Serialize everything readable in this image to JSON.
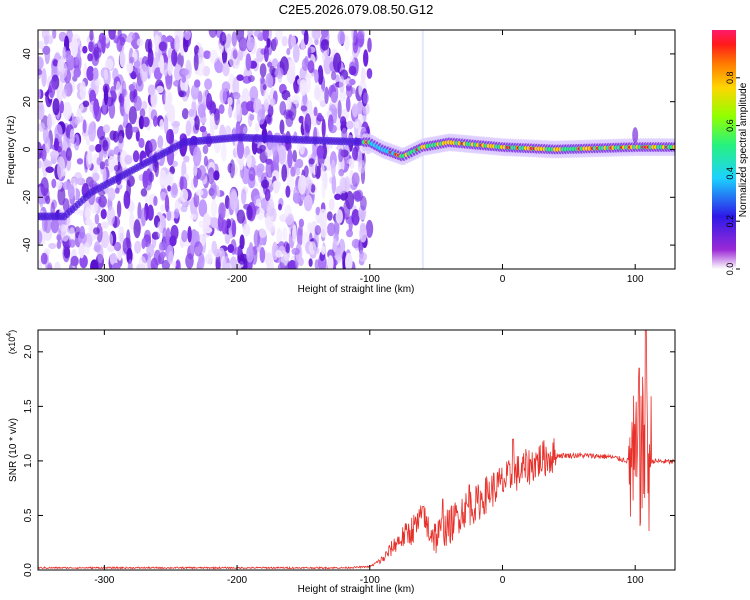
{
  "title": "C2E5.2026.079.08.50.G12",
  "colors": {
    "snr_line": "#e8302a",
    "heat_low": "#e8d8ff",
    "heat_mid": "#6a1bd8",
    "background": "#ffffff"
  },
  "chart_data": [
    {
      "type": "heatmap",
      "title": "C2E5.2026.079.08.50.G12",
      "xlabel": "Height of straight line (km)",
      "ylabel": "Frequency (Hz)",
      "xlim": [
        -350,
        130
      ],
      "ylim": [
        -50,
        50
      ],
      "xticks": [
        -300,
        -200,
        -100,
        0,
        100
      ],
      "yticks": [
        -40,
        -20,
        0,
        20,
        40
      ],
      "grid": false,
      "colorbar": {
        "label": "Normalized spectral amplitude",
        "range": [
          0.0,
          1.0
        ],
        "ticks": [
          "0.0",
          "0.2",
          "0.4",
          "0.6",
          "0.8"
        ],
        "colormap": [
          "#ffffff",
          "#9c2bd6",
          "#2d19e8",
          "#1cd2ff",
          "#27f27d",
          "#92ff00",
          "#ffd500",
          "#ff7a00",
          "#ff1a1a",
          "#ff1a6b"
        ]
      },
      "features": {
        "noise_region_x": [
          -350,
          -100
        ],
        "frequency_track": [
          {
            "x": -330,
            "y": -28
          },
          {
            "x": -310,
            "y": -18
          },
          {
            "x": -280,
            "y": -9
          },
          {
            "x": -240,
            "y": 3
          },
          {
            "x": -200,
            "y": 5
          },
          {
            "x": -150,
            "y": 4
          },
          {
            "x": -100,
            "y": 3
          },
          {
            "x": -90,
            "y": 0
          },
          {
            "x": -75,
            "y": -3
          },
          {
            "x": -60,
            "y": 1
          },
          {
            "x": -40,
            "y": 3
          },
          {
            "x": -20,
            "y": 2
          },
          {
            "x": 0,
            "y": 1
          },
          {
            "x": 40,
            "y": 0
          },
          {
            "x": 100,
            "y": 1
          },
          {
            "x": 130,
            "y": 1
          }
        ],
        "vertical_artifact_x": -60
      }
    },
    {
      "type": "line",
      "xlabel": "Height of straight line (km)",
      "ylabel": "SNR (10 * v/v)",
      "y_multiplier": "(x10",
      "y_multiplier_exp": "4",
      "xlim": [
        -350,
        130
      ],
      "ylim": [
        0,
        2.2
      ],
      "xticks": [
        -300,
        -200,
        -100,
        0,
        100
      ],
      "yticks": [
        "0.0",
        "0.5",
        "1.0",
        "1.5",
        "2.0"
      ],
      "grid": false,
      "series": [
        {
          "values_profile": [
            {
              "x": -350,
              "y": 0.02
            },
            {
              "x": -120,
              "y": 0.02
            },
            {
              "x": -100,
              "y": 0.03
            },
            {
              "x": -90,
              "y": 0.1
            },
            {
              "x": -80,
              "y": 0.25
            },
            {
              "x": -70,
              "y": 0.35
            },
            {
              "x": -60,
              "y": 0.45
            },
            {
              "x": -50,
              "y": 0.3
            },
            {
              "x": -40,
              "y": 0.4
            },
            {
              "x": -30,
              "y": 0.55
            },
            {
              "x": -20,
              "y": 0.6
            },
            {
              "x": -10,
              "y": 0.72
            },
            {
              "x": 0,
              "y": 0.8
            },
            {
              "x": 10,
              "y": 0.88
            },
            {
              "x": 20,
              "y": 0.95
            },
            {
              "x": 30,
              "y": 1.02
            },
            {
              "x": 40,
              "y": 1.05
            },
            {
              "x": 60,
              "y": 1.05
            },
            {
              "x": 80,
              "y": 1.04
            },
            {
              "x": 95,
              "y": 1.0
            },
            {
              "x": 100,
              "y": 0.9
            },
            {
              "x": 105,
              "y": 1.1
            },
            {
              "x": 110,
              "y": 1.0
            },
            {
              "x": 130,
              "y": 0.99
            }
          ],
          "peaks": [
            {
              "x": -60,
              "y": 0.58
            },
            {
              "x": -45,
              "y": 0.65
            },
            {
              "x": -25,
              "y": 0.78
            },
            {
              "x": 8,
              "y": 1.2
            },
            {
              "x": 103,
              "y": 1.85
            },
            {
              "x": 108,
              "y": 2.2
            }
          ]
        }
      ]
    }
  ]
}
